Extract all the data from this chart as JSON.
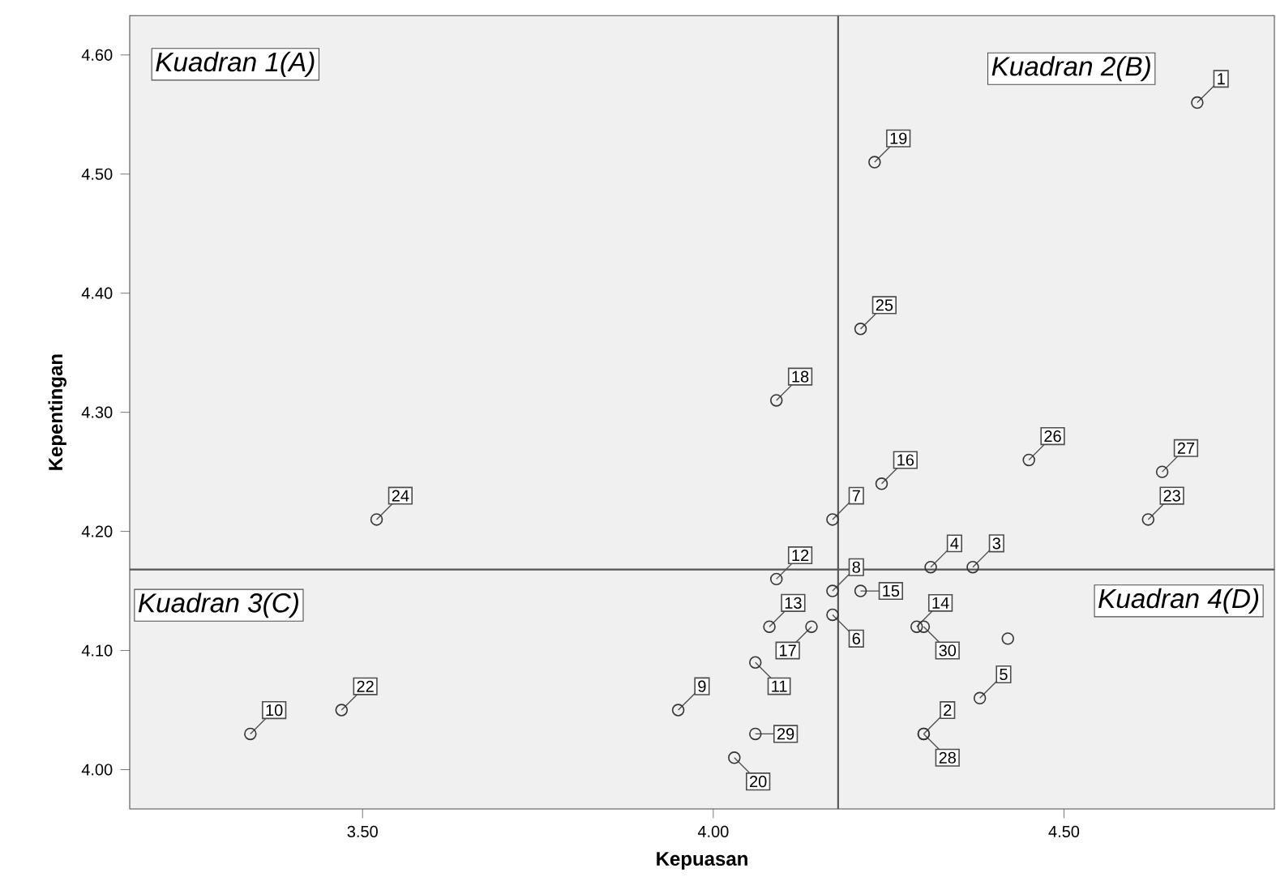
{
  "chart_data": {
    "type": "scatter",
    "xlabel": "Kepuasan",
    "ylabel": "Kepentingan",
    "x": [
      4.69,
      4.3,
      4.37,
      4.31,
      4.38,
      4.17,
      4.17,
      4.17,
      3.95,
      3.34,
      4.06,
      4.09,
      4.08,
      4.29,
      4.21,
      4.24,
      4.14,
      4.09,
      4.23,
      4.03,
      4.42,
      3.47,
      4.62,
      3.52,
      4.21,
      4.45,
      4.64,
      4.3,
      4.06,
      4.3
    ],
    "values": [
      4.56,
      4.03,
      4.17,
      4.17,
      4.06,
      4.13,
      4.21,
      4.15,
      4.05,
      4.03,
      4.09,
      4.16,
      4.12,
      4.12,
      4.15,
      4.24,
      4.12,
      4.31,
      4.51,
      4.01,
      4.11,
      4.05,
      4.21,
      4.21,
      4.37,
      4.26,
      4.25,
      4.03,
      4.03,
      4.12
    ],
    "color": "#333333",
    "marker": "circle",
    "xlim": [
      3.168,
      4.8
    ],
    "ylim": [
      3.967,
      4.633
    ],
    "xticks": [
      {
        "value": 3.5,
        "label": "3.50"
      },
      {
        "value": 4.0,
        "label": "4.00"
      },
      {
        "value": 4.5,
        "label": "4.50"
      }
    ],
    "yticks": [
      {
        "value": 4.0,
        "label": "4.00"
      },
      {
        "value": 4.1,
        "label": "4.10"
      },
      {
        "value": 4.2,
        "label": "4.20"
      },
      {
        "value": 4.3,
        "label": "4.30"
      },
      {
        "value": 4.4,
        "label": "4.40"
      },
      {
        "value": 4.5,
        "label": "4.50"
      },
      {
        "value": 4.6,
        "label": "4.60"
      }
    ],
    "ref_lines": [
      {
        "axis": "x",
        "value": 4.178,
        "color": "#555555"
      },
      {
        "axis": "y",
        "value": 4.168,
        "color": "#555555"
      }
    ],
    "annotations": [
      "Kuadran 1(A)",
      "Kuadran 2(B)",
      "Kuadran 3(C)",
      "Kuadran 4(D)",
      {
        "text": "1",
        "x": 4.69,
        "y": 4.56
      },
      {
        "text": "2",
        "x": 4.3,
        "y": 4.03
      },
      {
        "text": "3",
        "x": 4.37,
        "y": 4.17
      },
      {
        "text": "4",
        "x": 4.31,
        "y": 4.17
      },
      {
        "text": "5",
        "x": 4.38,
        "y": 4.06
      },
      {
        "text": "6",
        "x": 4.17,
        "y": 4.13
      },
      {
        "text": "7",
        "x": 4.17,
        "y": 4.21
      },
      {
        "text": "8",
        "x": 4.17,
        "y": 4.15
      },
      {
        "text": "9",
        "x": 3.95,
        "y": 4.05
      },
      {
        "text": "10",
        "x": 3.34,
        "y": 4.03
      },
      {
        "text": "11",
        "x": 4.06,
        "y": 4.09
      },
      {
        "text": "12",
        "x": 4.09,
        "y": 4.16
      },
      {
        "text": "13",
        "x": 4.08,
        "y": 4.12
      },
      {
        "text": "14",
        "x": 4.29,
        "y": 4.12
      },
      {
        "text": "15",
        "x": 4.21,
        "y": 4.15
      },
      {
        "text": "16",
        "x": 4.24,
        "y": 4.24
      },
      {
        "text": "17",
        "x": 4.14,
        "y": 4.12
      },
      {
        "text": "18",
        "x": 4.09,
        "y": 4.31
      },
      {
        "text": "19",
        "x": 4.23,
        "y": 4.51
      },
      {
        "text": "20",
        "x": 4.03,
        "y": 4.01
      },
      {
        "text": "22",
        "x": 3.47,
        "y": 4.05
      },
      {
        "text": "23",
        "x": 4.62,
        "y": 4.21
      },
      {
        "text": "24",
        "x": 3.52,
        "y": 4.21
      },
      {
        "text": "25",
        "x": 4.21,
        "y": 4.37
      },
      {
        "text": "26",
        "x": 4.45,
        "y": 4.26
      },
      {
        "text": "27",
        "x": 4.64,
        "y": 4.25
      },
      {
        "text": "28",
        "x": 4.3,
        "y": 4.03
      },
      {
        "text": "29",
        "x": 4.06,
        "y": 4.03
      },
      {
        "text": "30",
        "x": 4.3,
        "y": 4.12
      }
    ]
  }
}
